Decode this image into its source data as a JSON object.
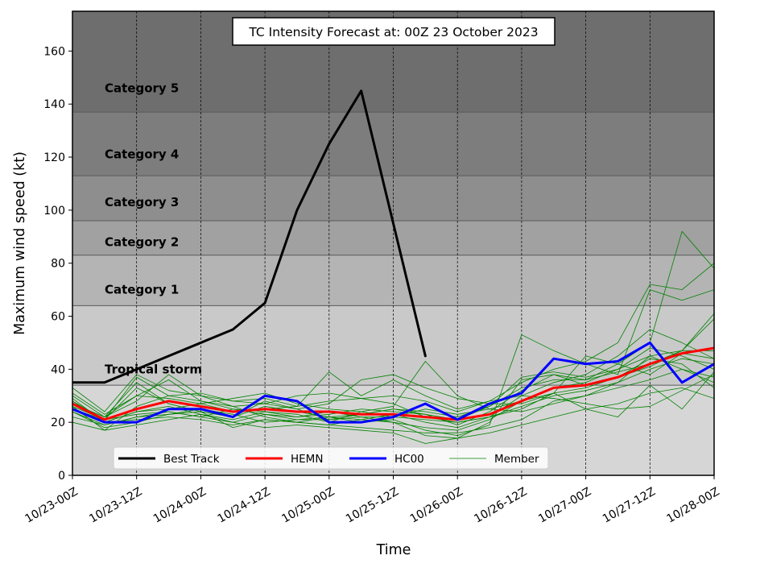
{
  "chart_data": {
    "type": "line",
    "title": "TC Intensity Forecast at: 00Z 23 October 2023",
    "xlabel": "Time",
    "ylabel": "Maximum wind speed (kt)",
    "ylim": [
      0,
      175
    ],
    "yticks": [
      0,
      20,
      40,
      60,
      80,
      100,
      120,
      140,
      160
    ],
    "xlim": [
      0,
      120
    ],
    "xticks": [
      {
        "h": 0,
        "label": "10/23-00Z"
      },
      {
        "h": 12,
        "label": "10/23-12Z"
      },
      {
        "h": 24,
        "label": "10/24-00Z"
      },
      {
        "h": 36,
        "label": "10/24-12Z"
      },
      {
        "h": 48,
        "label": "10/25-00Z"
      },
      {
        "h": 60,
        "label": "10/25-12Z"
      },
      {
        "h": 72,
        "label": "10/26-00Z"
      },
      {
        "h": 84,
        "label": "10/26-12Z"
      },
      {
        "h": 96,
        "label": "10/27-00Z"
      },
      {
        "h": 108,
        "label": "10/27-12Z"
      },
      {
        "h": 120,
        "label": "10/28-00Z"
      }
    ],
    "grid": "vertical dashed",
    "legend_position": "bottom-left",
    "categories": [
      {
        "label": "Tropical storm",
        "from": 0,
        "to": 34,
        "color": "#d6d6d6",
        "label_y": 40
      },
      {
        "label": "Category 1",
        "from": 34,
        "to": 64,
        "color": "#c9c9c9",
        "label_y": 70
      },
      {
        "label": "Category 2",
        "from": 64,
        "to": 83,
        "color": "#b4b4b4",
        "label_y": 88
      },
      {
        "label": "Category 3",
        "from": 83,
        "to": 96,
        "color": "#a1a1a1",
        "label_y": 103
      },
      {
        "label": "Category 4",
        "from": 96,
        "to": 113,
        "color": "#8e8e8e",
        "label_y": 121
      },
      {
        "label": "Category 5",
        "from": 113,
        "to": 137,
        "color": "#7d7d7d",
        "label_y": 146
      },
      {
        "label": "",
        "from": 137,
        "to": 175,
        "color": "#6e6e6e"
      }
    ],
    "series": [
      {
        "name": "Best Track",
        "color": "#000000",
        "width": 3,
        "x": [
          0,
          6,
          12,
          18,
          24,
          30,
          36,
          42,
          48,
          54,
          60,
          66
        ],
        "values": [
          35,
          35,
          40,
          45,
          50,
          55,
          65,
          100,
          125,
          145,
          95,
          45
        ]
      },
      {
        "name": "HEMN",
        "color": "#ff0000",
        "width": 3,
        "x": [
          0,
          6,
          12,
          18,
          24,
          30,
          36,
          42,
          48,
          54,
          60,
          66,
          72,
          78,
          84,
          90,
          96,
          102,
          108,
          114,
          120
        ],
        "values": [
          27,
          21,
          25,
          28,
          26,
          24,
          25,
          24,
          24,
          23,
          23,
          22,
          21,
          23,
          28,
          33,
          34,
          37,
          42,
          46,
          48
        ]
      },
      {
        "name": "HC00",
        "color": "#0000ff",
        "width": 3,
        "x": [
          0,
          6,
          12,
          18,
          24,
          30,
          36,
          42,
          48,
          54,
          60,
          66,
          72,
          78,
          84,
          90,
          96,
          102,
          108,
          114,
          120
        ],
        "values": [
          25,
          20,
          20,
          25,
          25,
          22,
          30,
          28,
          20,
          20,
          22,
          27,
          21,
          27,
          31,
          44,
          42,
          43,
          50,
          35,
          42
        ]
      }
    ],
    "members": {
      "name": "Member",
      "color": "#008000",
      "width": 0.8,
      "x": [
        0,
        6,
        12,
        18,
        24,
        30,
        36,
        42,
        48,
        54,
        60,
        66,
        72,
        78,
        84,
        90,
        96,
        102,
        108,
        114,
        120
      ],
      "runs": [
        [
          26,
          21,
          37,
          30,
          28,
          25,
          23,
          22,
          24,
          22,
          20,
          18,
          17,
          21,
          28,
          33,
          35,
          40,
          48,
          45,
          40
        ],
        [
          30,
          22,
          35,
          27,
          24,
          22,
          26,
          24,
          22,
          21,
          23,
          20,
          18,
          22,
          30,
          35,
          38,
          45,
          55,
          50,
          44
        ],
        [
          33,
          24,
          38,
          32,
          30,
          28,
          29,
          26,
          39,
          30,
          36,
          30,
          25,
          28,
          35,
          40,
          43,
          50,
          72,
          70,
          80
        ],
        [
          28,
          20,
          24,
          26,
          23,
          21,
          24,
          22,
          23,
          25,
          24,
          23,
          19,
          24,
          32,
          38,
          36,
          42,
          50,
          92,
          78
        ],
        [
          24,
          19,
          22,
          24,
          22,
          20,
          23,
          21,
          21,
          22,
          22,
          21,
          20,
          22,
          26,
          30,
          32,
          35,
          40,
          44,
          42
        ],
        [
          27,
          22,
          28,
          38,
          30,
          26,
          27,
          25,
          27,
          36,
          38,
          33,
          29,
          27,
          27,
          31,
          45,
          42,
          38,
          46,
          44
        ],
        [
          25,
          20,
          21,
          22,
          21,
          19,
          21,
          20,
          19,
          18,
          17,
          16,
          16,
          18,
          21,
          28,
          30,
          35,
          45,
          47,
          47
        ],
        [
          31,
          23,
          30,
          29,
          27,
          29,
          31,
          27,
          25,
          24,
          26,
          43,
          30,
          25,
          24,
          27,
          30,
          33,
          36,
          40,
          37
        ],
        [
          24,
          18,
          20,
          23,
          25,
          23,
          20,
          21,
          22,
          20,
          21,
          17,
          15,
          19,
          53,
          47,
          42,
          38,
          70,
          66,
          70
        ],
        [
          26,
          17,
          26,
          30,
          31,
          28,
          27,
          30,
          31,
          29,
          27,
          22,
          20,
          22,
          25,
          31,
          33,
          37,
          41,
          47,
          61
        ],
        [
          28,
          21,
          33,
          27,
          24,
          22,
          28,
          25,
          21,
          23,
          25,
          23,
          21,
          26,
          37,
          39,
          37,
          40,
          45,
          40,
          35
        ],
        [
          22,
          19,
          22,
          23,
          24,
          18,
          21,
          20,
          19,
          21,
          20,
          15,
          14,
          20,
          36,
          38,
          34,
          37,
          44,
          42,
          33
        ],
        [
          20,
          17,
          19,
          21,
          23,
          20,
          18,
          19,
          18,
          17,
          16,
          12,
          14,
          16,
          19,
          22,
          25,
          27,
          31,
          33,
          29
        ],
        [
          29,
          20,
          24,
          25,
          27,
          24,
          25,
          26,
          28,
          29,
          30,
          28,
          24,
          28,
          30,
          29,
          27,
          25,
          26,
          32,
          38
        ],
        [
          25,
          21,
          23,
          24,
          22,
          25,
          24,
          23,
          20,
          24,
          22,
          25,
          23,
          25,
          28,
          31,
          25,
          22,
          34,
          25,
          39
        ],
        [
          27,
          22,
          30,
          36,
          28,
          26,
          22,
          20,
          22,
          23,
          25,
          24,
          22,
          26,
          33,
          36,
          36,
          39,
          42,
          47,
          59
        ]
      ]
    }
  }
}
